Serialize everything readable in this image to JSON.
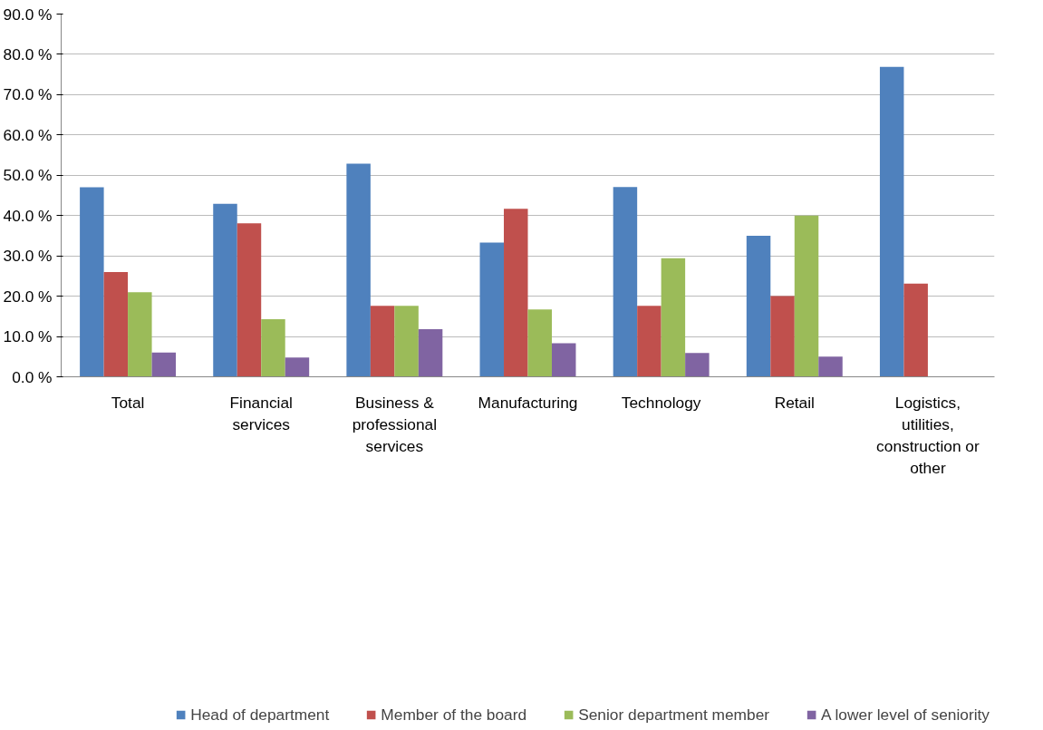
{
  "chart_data": {
    "type": "bar",
    "categories": [
      "Total",
      "Financial services",
      "Business & professional services",
      "Manufacturing",
      "Technology",
      "Retail",
      "Logistics, utilities, construction or other"
    ],
    "series": [
      {
        "name": "Head of department",
        "color": "#4f81bd",
        "values": [
          47,
          42.9,
          52.9,
          33.3,
          47.1,
          35,
          76.9
        ]
      },
      {
        "name": "Member of the board",
        "color": "#c0504d",
        "values": [
          26,
          38.1,
          17.6,
          41.7,
          17.6,
          20,
          23.1
        ]
      },
      {
        "name": "Senior department member",
        "color": "#9bbb59",
        "values": [
          21,
          14.3,
          17.6,
          16.7,
          29.4,
          40,
          null
        ]
      },
      {
        "name": "A lower level of seniority",
        "color": "#8064a2",
        "values": [
          6,
          4.8,
          11.8,
          8.3,
          5.9,
          5,
          null
        ]
      }
    ],
    "ylim": [
      0,
      90
    ],
    "yticks": [
      {
        "value": 0,
        "label": "0.0 %"
      },
      {
        "value": 10,
        "label": "10.0 %"
      },
      {
        "value": 20,
        "label": "20.0 %"
      },
      {
        "value": 30,
        "label": "30.0 %"
      },
      {
        "value": 40,
        "label": "40.0 %"
      },
      {
        "value": 50,
        "label": "50.0 %"
      },
      {
        "value": 60,
        "label": "60.0 %"
      },
      {
        "value": 70,
        "label": "70.0 %"
      },
      {
        "value": 80,
        "label": "80.0 %"
      },
      {
        "value": 90,
        "label": "90.0 %"
      }
    ],
    "grid": "y",
    "legend": "bottom"
  }
}
